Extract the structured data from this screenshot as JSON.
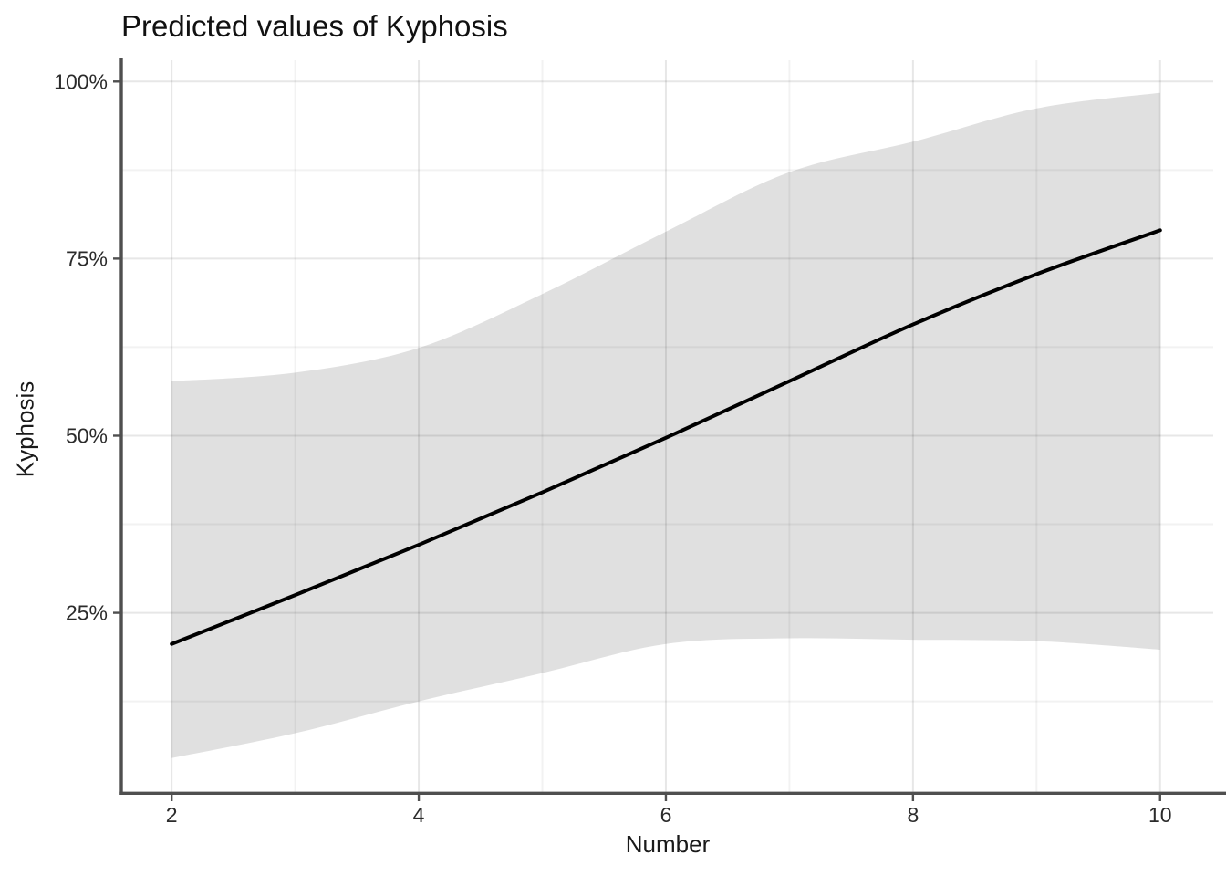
{
  "chart_data": {
    "type": "line",
    "title": "Predicted values of Kyphosis",
    "xlabel": "Number",
    "ylabel": "Kyphosis",
    "x": [
      2,
      3,
      4,
      5,
      6,
      7,
      8,
      9,
      10
    ],
    "series": [
      {
        "name": "predicted",
        "values": [
          20.6,
          27.5,
          34.6,
          42.0,
          49.7,
          57.7,
          65.7,
          72.8,
          79.0
        ]
      },
      {
        "name": "ci_lower",
        "values": [
          4.5,
          8.0,
          12.5,
          16.5,
          20.6,
          21.4,
          21.2,
          21.0,
          19.8
        ]
      },
      {
        "name": "ci_upper",
        "values": [
          57.7,
          58.9,
          62.4,
          70.0,
          78.8,
          87.2,
          91.5,
          96.2,
          98.4
        ]
      }
    ],
    "x_ticks": [
      2,
      4,
      6,
      8,
      10
    ],
    "x_tick_labels": [
      "2",
      "4",
      "6",
      "8",
      "10"
    ],
    "x_minor_ticks": [
      3,
      5,
      7,
      9
    ],
    "y_ticks": [
      25,
      50,
      75,
      100
    ],
    "y_tick_labels": [
      "25%",
      "50%",
      "75%",
      "100%"
    ],
    "y_minor_ticks": [
      12.5,
      37.5,
      62.5,
      87.5
    ],
    "xlim": [
      1.6,
      10.43
    ],
    "ylim": [
      -0.3,
      103
    ],
    "grid": true,
    "legend": "none",
    "colors": {
      "line": "#000000",
      "ribbon": "rgba(0,0,0,0.12)",
      "grid_major": "rgba(0,0,0,0.095)",
      "grid_minor": "rgba(0,0,0,0.05)",
      "axis": "#4f4f4f",
      "tick_text": "#2b2b2b",
      "background": "#ffffff"
    }
  }
}
